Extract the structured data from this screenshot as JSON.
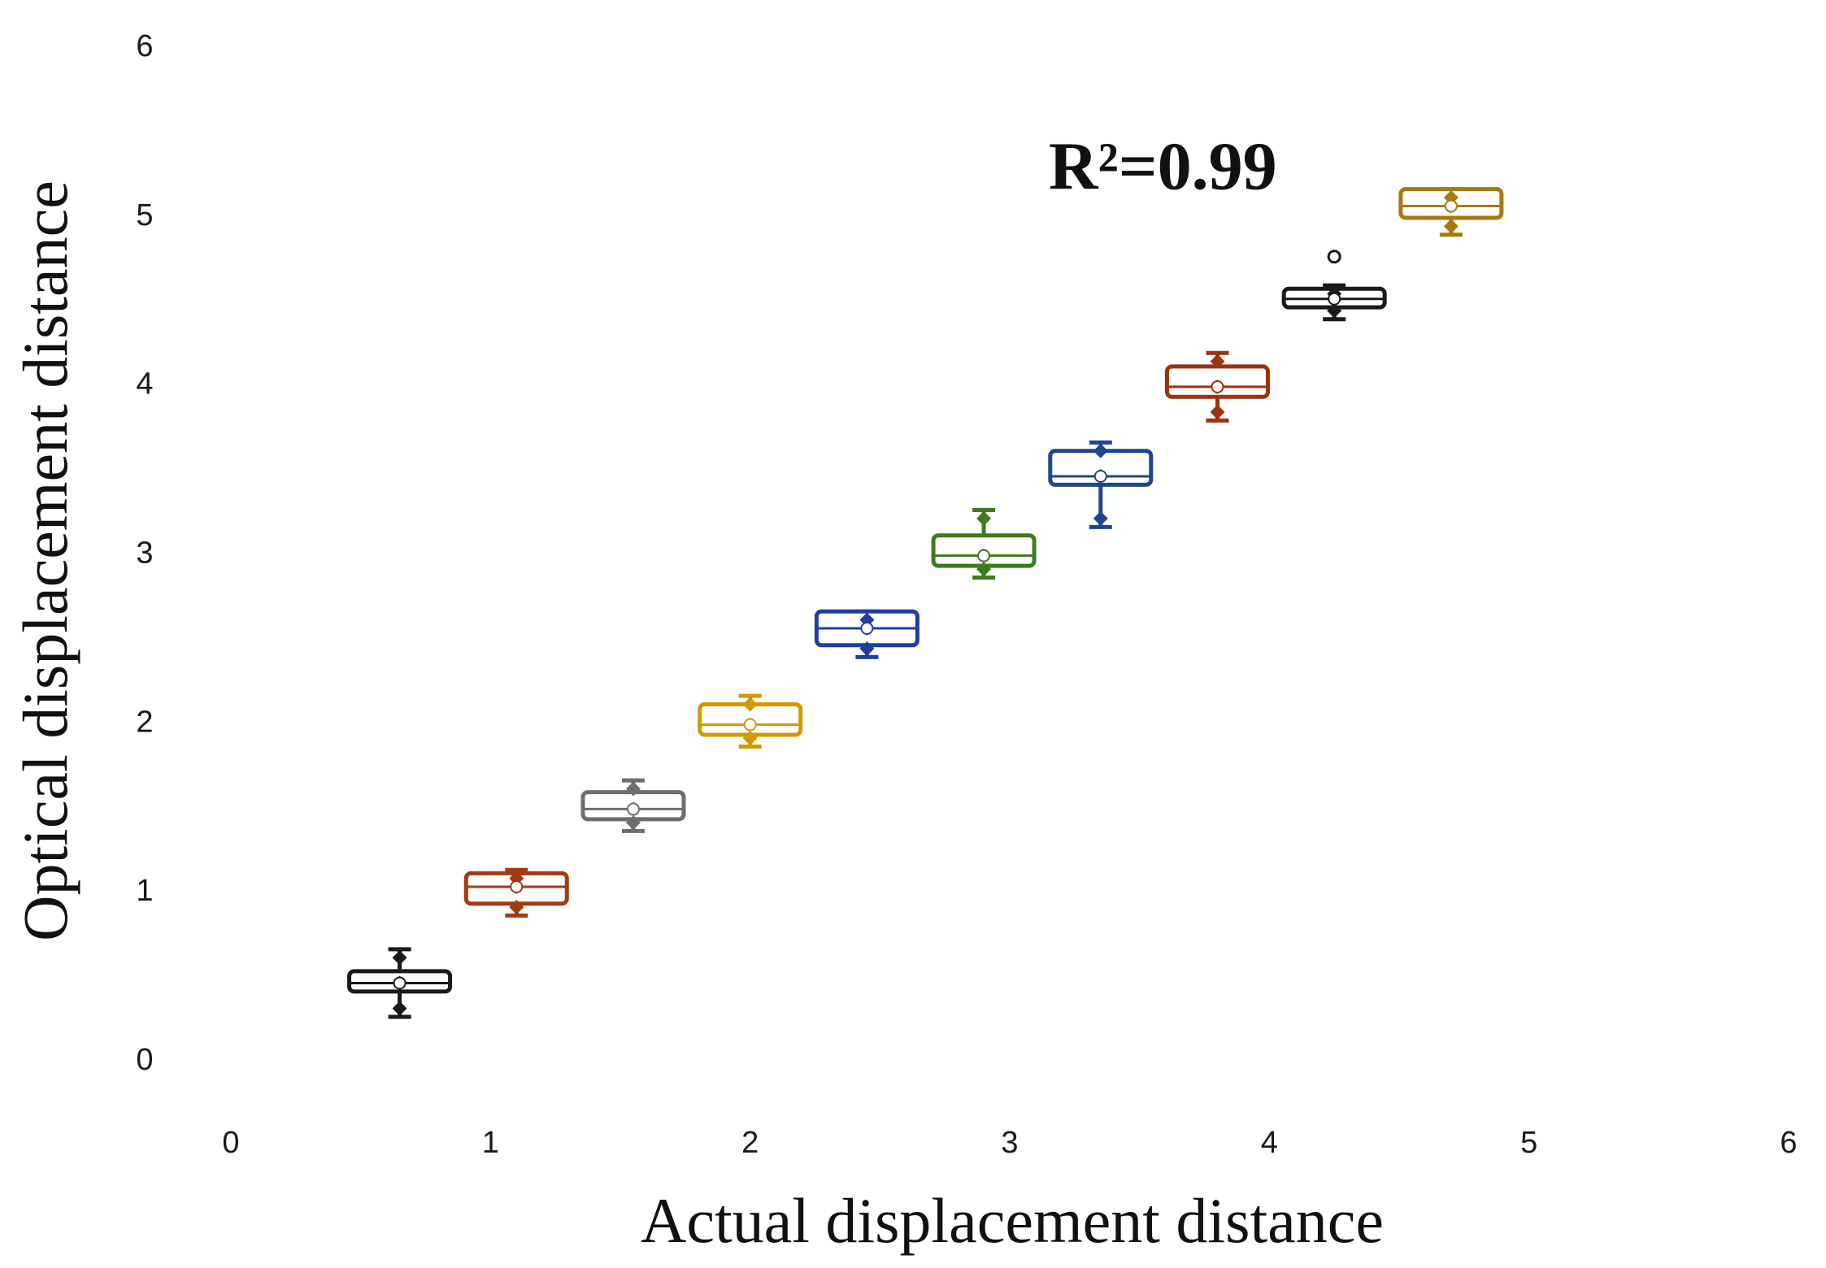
{
  "chart_data": {
    "type": "box",
    "xlabel": "Actual displacement distance",
    "ylabel": "Optical displacement distance",
    "xlim": [
      0,
      6
    ],
    "ylim": [
      0,
      6
    ],
    "xticks": [
      "0",
      "1",
      "2",
      "3",
      "4",
      "5",
      "6"
    ],
    "yticks": [
      "0",
      "1",
      "2",
      "3",
      "4",
      "5",
      "6"
    ],
    "grid": false,
    "annotation": {
      "text": "R²=0.99",
      "x": 3.15,
      "y": 5.15
    },
    "boxes": [
      {
        "x": 0.65,
        "q1": 0.4,
        "median": 0.45,
        "q3": 0.52,
        "whisker_low": 0.25,
        "whisker_high": 0.65,
        "color": "#1a1a1a",
        "outliers": []
      },
      {
        "x": 1.1,
        "q1": 0.92,
        "median": 1.02,
        "q3": 1.1,
        "whisker_low": 0.85,
        "whisker_high": 1.12,
        "color": "#a33a12",
        "outliers": []
      },
      {
        "x": 1.55,
        "q1": 1.42,
        "median": 1.48,
        "q3": 1.58,
        "whisker_low": 1.35,
        "whisker_high": 1.65,
        "color": "#6e6e6e",
        "outliers": []
      },
      {
        "x": 2.0,
        "q1": 1.92,
        "median": 1.98,
        "q3": 2.1,
        "whisker_low": 1.85,
        "whisker_high": 2.15,
        "color": "#d09a00",
        "outliers": []
      },
      {
        "x": 2.45,
        "q1": 2.45,
        "median": 2.55,
        "q3": 2.65,
        "whisker_low": 2.38,
        "whisker_high": 2.65,
        "color": "#1f3fa0",
        "outliers": []
      },
      {
        "x": 2.9,
        "q1": 2.92,
        "median": 2.98,
        "q3": 3.1,
        "whisker_low": 2.85,
        "whisker_high": 3.25,
        "color": "#3e7a1e",
        "outliers": []
      },
      {
        "x": 3.35,
        "q1": 3.4,
        "median": 3.45,
        "q3": 3.6,
        "whisker_low": 3.15,
        "whisker_high": 3.65,
        "color": "#21468a",
        "outliers": []
      },
      {
        "x": 3.8,
        "q1": 3.92,
        "median": 3.98,
        "q3": 4.1,
        "whisker_low": 3.78,
        "whisker_high": 4.18,
        "color": "#9c3210",
        "outliers": []
      },
      {
        "x": 4.25,
        "q1": 4.45,
        "median": 4.5,
        "q3": 4.56,
        "whisker_low": 4.38,
        "whisker_high": 4.58,
        "color": "#1a1a1a",
        "outliers": [
          4.75
        ]
      },
      {
        "x": 4.7,
        "q1": 4.98,
        "median": 5.05,
        "q3": 5.15,
        "whisker_low": 4.88,
        "whisker_high": 5.15,
        "color": "#a77a10",
        "outliers": []
      }
    ]
  }
}
